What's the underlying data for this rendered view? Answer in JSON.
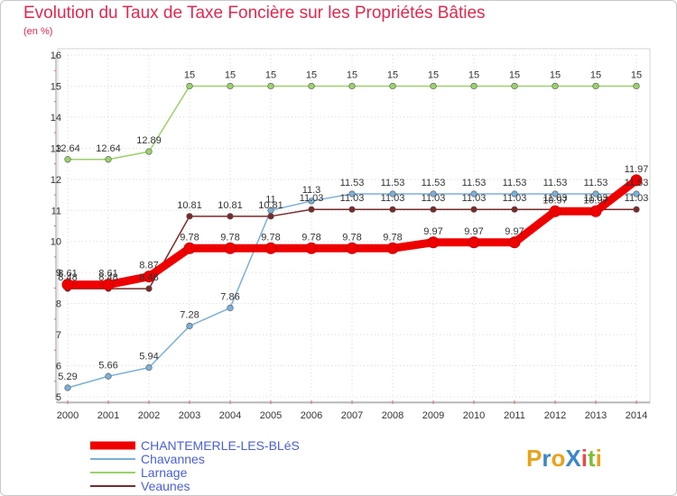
{
  "title": "Evolution du Taux de Taxe Foncière sur les Propriétés Bâties",
  "unit": "(en %)",
  "logo": {
    "text": "ProXiti",
    "letters": [
      "P",
      "r",
      "o",
      "X",
      "i",
      "t",
      "i"
    ],
    "colors": [
      "#e8a21a",
      "#3b88c9",
      "#e8a21a",
      "#3b88c9",
      "#e84c4c",
      "#7bbf3a",
      "#e8a21a"
    ]
  },
  "chart_data": {
    "type": "line",
    "title": "Evolution du Taux de Taxe Foncière sur les Propriétés Bâties",
    "ylabel": "(en %)",
    "x": [
      "2000",
      "2001",
      "2002",
      "2003",
      "2004",
      "2005",
      "2006",
      "2007",
      "2008",
      "2009",
      "2010",
      "2011",
      "2012",
      "2013",
      "2014"
    ],
    "ylim": [
      5,
      16
    ],
    "yticks": [
      "5",
      "6",
      "7",
      "8",
      "9",
      "10",
      "11",
      "12",
      "13",
      "14",
      "15",
      "16"
    ],
    "series": [
      {
        "name": "CHANTEMERLE-LES-BLéS",
        "color": "#ee0000",
        "legend_color": "#4a5fd6",
        "values": [
          8.61,
          8.61,
          8.87,
          9.78,
          9.78,
          9.78,
          9.78,
          9.78,
          9.78,
          9.97,
          9.97,
          9.97,
          10.97,
          10.97,
          11.97
        ],
        "labels": [
          "8.61",
          "8.61",
          "8.87",
          "9.78",
          "9.78",
          "9.78",
          "9.78",
          "9.78",
          "9.78",
          "9.97",
          "9.97",
          "9.97",
          "10.97",
          "10.97",
          "11.97"
        ]
      },
      {
        "name": "Chavannes",
        "color": "#7ab0d8",
        "legend_color": "#4a5fd6",
        "values": [
          5.29,
          5.66,
          5.94,
          7.28,
          7.86,
          11.0,
          11.3,
          11.53,
          11.53,
          11.53,
          11.53,
          11.53,
          11.53,
          11.53,
          11.53
        ],
        "labels": [
          "5.29",
          "5.66",
          "5.94",
          "7.28",
          "7.86",
          "11",
          "11.3",
          "11.53",
          "11.53",
          "11.53",
          "11.53",
          "11.53",
          "11.53",
          "11.53",
          "11.53"
        ]
      },
      {
        "name": "Larnage",
        "color": "#9ad26a",
        "legend_color": "#4a5fd6",
        "values": [
          12.64,
          12.64,
          12.89,
          15,
          15,
          15,
          15,
          15,
          15,
          15,
          15,
          15,
          15,
          15,
          15
        ],
        "labels": [
          "12.64",
          "12.64",
          "12.89",
          "15",
          "15",
          "15",
          "15",
          "15",
          "15",
          "15",
          "15",
          "15",
          "15",
          "15",
          "15"
        ]
      },
      {
        "name": "Veaunes",
        "color": "#7a2a2a",
        "legend_color": "#4a5fd6",
        "values": [
          8.48,
          8.48,
          8.48,
          10.81,
          10.81,
          10.81,
          11.03,
          11.03,
          11.03,
          11.03,
          11.03,
          11.03,
          11.03,
          11.03,
          11.03
        ],
        "labels": [
          "8.48",
          "8.48",
          "8.48",
          "10.81",
          "10.81",
          "10.81",
          "11.03",
          "11.03",
          "11.03",
          "11.03",
          "11.03",
          "11.03",
          "11.03",
          "11.03",
          "11.03"
        ]
      }
    ]
  }
}
